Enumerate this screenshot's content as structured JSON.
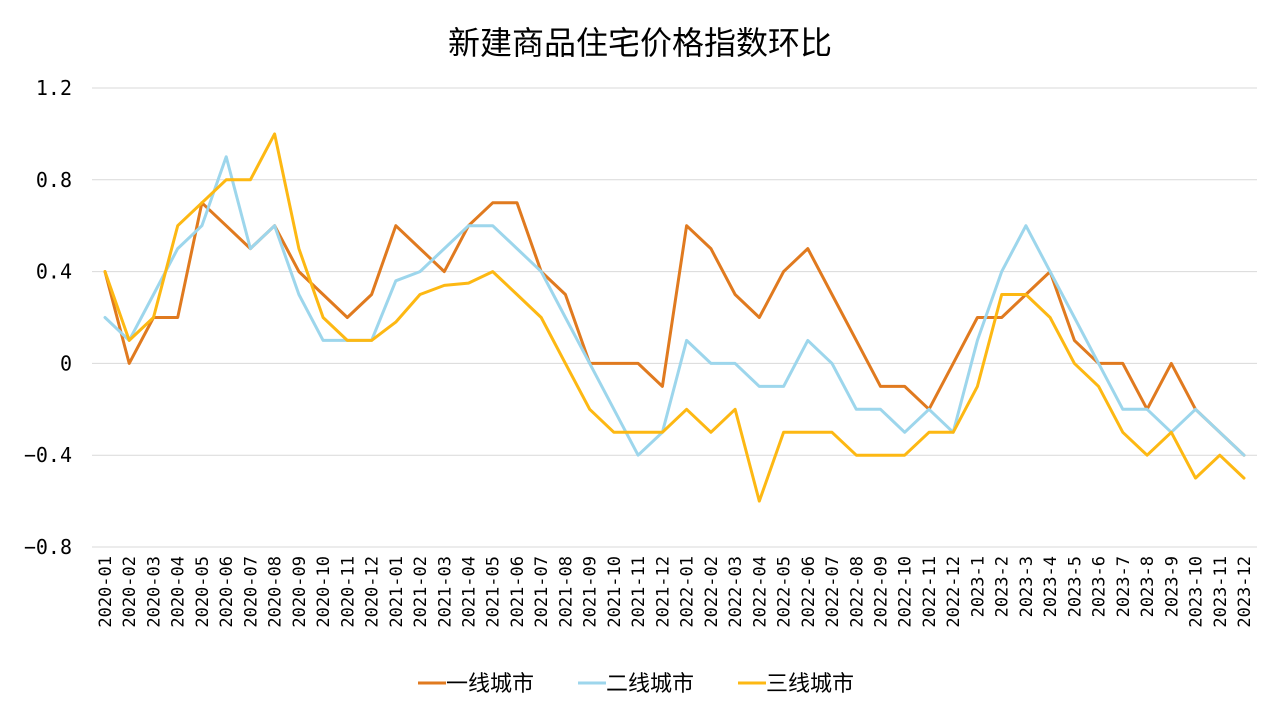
{
  "chart_data": {
    "type": "line",
    "title": "新建商品住宅价格指数环比",
    "xlabel": "",
    "ylabel": "",
    "ylim": [
      -0.8,
      1.2
    ],
    "y_ticks": [
      "1.2",
      "0.8",
      "0.4",
      "0",
      "−0.4",
      "−0.8"
    ],
    "grid": true,
    "legend_position": "bottom",
    "categories": [
      "2020-01",
      "2020-02",
      "2020-03",
      "2020-04",
      "2020-05",
      "2020-06",
      "2020-07",
      "2020-08",
      "2020-09",
      "2020-10",
      "2020-11",
      "2020-12",
      "2021-01",
      "2021-02",
      "2021-03",
      "2021-04",
      "2021-05",
      "2021-06",
      "2021-07",
      "2021-08",
      "2021-09",
      "2021-10",
      "2021-11",
      "2021-12",
      "2022-01",
      "2022-02",
      "2022-03",
      "2022-04",
      "2022-05",
      "2022-06",
      "2022-07",
      "2022-08",
      "2022-09",
      "2022-10",
      "2022-11",
      "2022-12",
      "2023-1",
      "2023-2",
      "2023-3",
      "2023-4",
      "2023-5",
      "2023-6",
      "2023-7",
      "2023-8",
      "2023-9",
      "2023-10",
      "2023-11",
      "2023-12"
    ],
    "series": [
      {
        "name": "一线城市",
        "color": "#e07a1f",
        "values": [
          0.4,
          0,
          0.2,
          0.2,
          0.7,
          0.6,
          0.5,
          0.6,
          0.4,
          0.3,
          0.2,
          0.3,
          0.6,
          0.5,
          0.4,
          0.6,
          0.7,
          0.7,
          0.4,
          0.3,
          0,
          0,
          0,
          -0.1,
          0.6,
          0.5,
          0.3,
          0.2,
          0.4,
          0.5,
          0.3,
          0.1,
          -0.1,
          -0.1,
          -0.2,
          0,
          0.2,
          0.2,
          0.3,
          0.4,
          0.1,
          0,
          0,
          -0.2,
          0,
          -0.2,
          -0.3,
          -0.4
        ]
      },
      {
        "name": "二线城市",
        "color": "#9dd6ec",
        "values": [
          0.2,
          0.1,
          0.3,
          0.5,
          0.6,
          0.9,
          0.5,
          0.6,
          0.3,
          0.1,
          0.1,
          0.1,
          0.36,
          0.4,
          0.5,
          0.6,
          0.6,
          0.5,
          0.4,
          0.2,
          0,
          -0.2,
          -0.4,
          -0.3,
          0.1,
          0,
          0,
          -0.1,
          -0.1,
          0.1,
          0,
          -0.2,
          -0.2,
          -0.3,
          -0.2,
          -0.3,
          0.1,
          0.4,
          0.6,
          0.4,
          0.2,
          0,
          -0.2,
          -0.2,
          -0.3,
          -0.2,
          -0.3,
          -0.4
        ]
      },
      {
        "name": "三线城市",
        "color": "#fdb813",
        "values": [
          0.4,
          0.1,
          0.2,
          0.6,
          0.7,
          0.8,
          0.8,
          1.0,
          0.5,
          0.2,
          0.1,
          0.1,
          0.18,
          0.3,
          0.34,
          0.35,
          0.4,
          0.3,
          0.2,
          0,
          -0.2,
          -0.3,
          -0.3,
          -0.3,
          -0.2,
          -0.3,
          -0.2,
          -0.6,
          -0.3,
          -0.3,
          -0.3,
          -0.4,
          -0.4,
          -0.4,
          -0.3,
          -0.3,
          -0.1,
          0.3,
          0.3,
          0.2,
          0,
          -0.1,
          -0.3,
          -0.4,
          -0.3,
          -0.5,
          -0.4,
          -0.5
        ]
      }
    ]
  }
}
